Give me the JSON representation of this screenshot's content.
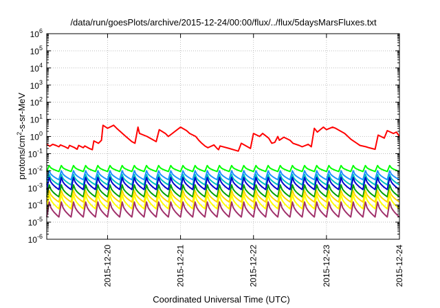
{
  "chart_data": {
    "type": "line",
    "title": "/data/run/goesPlots/archive/2015-12-24/00:00/flux/../flux/5daysMarsFluxes.txt",
    "xlabel": "Coordinated Universal Time (UTC)",
    "ylabel": "protons/cm²-s-sr-MeV",
    "ylabel_parts": {
      "base": "protons/cm",
      "sup": "2",
      "rest": "-s-sr-MeV"
    },
    "y_scale": "log",
    "ylim": [
      1e-06,
      1000000.0
    ],
    "y_ticks": [
      {
        "value": -6,
        "base": "10",
        "exp": "-6"
      },
      {
        "value": -5,
        "base": "10",
        "exp": "-5"
      },
      {
        "value": -4,
        "base": "10",
        "exp": "-4"
      },
      {
        "value": -3,
        "base": "10",
        "exp": "-3"
      },
      {
        "value": -2,
        "base": "10",
        "exp": "-2"
      },
      {
        "value": -1,
        "base": "10",
        "exp": "-1"
      },
      {
        "value": 0,
        "base": "10",
        "exp": "0"
      },
      {
        "value": 1,
        "base": "10",
        "exp": "1"
      },
      {
        "value": 2,
        "base": "10",
        "exp": "2"
      },
      {
        "value": 3,
        "base": "10",
        "exp": "3"
      },
      {
        "value": 4,
        "base": "10",
        "exp": "4"
      },
      {
        "value": 5,
        "base": "10",
        "exp": "5"
      },
      {
        "value": 6,
        "base": "10",
        "exp": "6"
      }
    ],
    "xlim": [
      "2015-12-19T04:00",
      "2015-12-24T00:00"
    ],
    "x_ticks": [
      "2015-12-20",
      "2015-12-21",
      "2015-12-22",
      "2015-12-23",
      "2015-12-24"
    ],
    "grid": true,
    "series": [
      {
        "color": "#ff0000",
        "x": [
          "2015-12-19T04:00",
          "2015-12-19T05:00",
          "2015-12-19T06:00",
          "2015-12-19T07:00",
          "2015-12-19T08:00",
          "2015-12-19T08:30",
          "2015-12-19T10:00",
          "2015-12-19T11:00",
          "2015-12-19T11:30",
          "2015-12-19T13:00",
          "2015-12-19T14:00",
          "2015-12-19T14:30",
          "2015-12-19T16:00",
          "2015-12-19T16:30",
          "2015-12-19T18:00",
          "2015-12-19T19:00",
          "2015-12-19T19:30",
          "2015-12-19T21:00",
          "2015-12-19T22:00",
          "2015-12-19T22:30",
          "2015-12-20T00:00",
          "2015-12-20T02:00",
          "2015-12-20T03:00",
          "2015-12-20T06:00",
          "2015-12-20T08:00",
          "2015-12-20T09:00",
          "2015-12-20T10:00",
          "2015-12-20T10:30",
          "2015-12-20T13:00",
          "2015-12-20T16:00",
          "2015-12-20T17:00",
          "2015-12-20T19:00",
          "2015-12-20T20:00",
          "2015-12-21T00:00",
          "2015-12-21T02:00",
          "2015-12-21T03:00",
          "2015-12-21T05:00",
          "2015-12-21T06:00",
          "2015-12-21T07:00",
          "2015-12-21T08:00",
          "2015-12-21T09:00",
          "2015-12-21T11:00",
          "2015-12-21T12:00",
          "2015-12-21T12:30",
          "2015-12-21T13:00",
          "2015-12-21T16:00",
          "2015-12-21T19:00",
          "2015-12-21T20:00",
          "2015-12-21T23:00",
          "2015-12-22T00:00",
          "2015-12-22T02:00",
          "2015-12-22T03:00",
          "2015-12-22T05:00",
          "2015-12-22T06:00",
          "2015-12-22T07:00",
          "2015-12-22T08:00",
          "2015-12-22T08:30",
          "2015-12-22T10:00",
          "2015-12-22T12:00",
          "2015-12-22T13:00",
          "2015-12-22T15:00",
          "2015-12-22T16:00",
          "2015-12-22T18:00",
          "2015-12-22T19:00",
          "2015-12-22T20:00",
          "2015-12-22T21:00",
          "2015-12-22T23:00",
          "2015-12-23T00:00",
          "2015-12-23T02:00",
          "2015-12-23T03:00",
          "2015-12-23T06:00",
          "2015-12-23T08:00",
          "2015-12-23T10:00",
          "2015-12-23T11:00",
          "2015-12-23T13:00",
          "2015-12-23T14:00",
          "2015-12-23T16:00",
          "2015-12-23T17:00",
          "2015-12-23T19:00",
          "2015-12-23T20:00",
          "2015-12-23T22:00",
          "2015-12-23T23:00",
          "2015-12-24T00:00"
        ],
        "y": [
          0.35,
          0.27,
          0.35,
          0.3,
          0.25,
          0.32,
          0.25,
          0.2,
          0.3,
          0.23,
          0.18,
          0.3,
          0.22,
          0.28,
          0.2,
          0.17,
          0.55,
          0.4,
          0.6,
          4.5,
          3.0,
          4.5,
          3.0,
          1.0,
          0.5,
          0.4,
          3.5,
          1.5,
          1.0,
          0.5,
          2.5,
          1.5,
          1.0,
          3.5,
          2.2,
          1.5,
          1.0,
          0.6,
          0.4,
          0.28,
          0.22,
          0.32,
          0.2,
          0.17,
          0.28,
          0.2,
          0.14,
          0.4,
          0.2,
          1.5,
          1.0,
          1.5,
          0.8,
          0.4,
          0.45,
          1.0,
          0.6,
          0.9,
          0.6,
          0.4,
          0.3,
          0.25,
          0.35,
          0.25,
          3.0,
          1.8,
          3.5,
          2.5,
          3.5,
          3.0,
          1.5,
          0.7,
          0.4,
          0.3,
          0.25,
          0.22,
          0.18,
          1.2,
          0.8,
          2.2,
          1.5,
          1.8,
          1.0
        ]
      },
      {
        "color": "#00ff00",
        "sawtooth": {
          "period_hours": 4,
          "start": "2015-12-19T04:00",
          "peak": 0.02,
          "trough": 0.009
        }
      },
      {
        "color": "#1e90ff",
        "sawtooth": {
          "period_hours": 4,
          "start": "2015-12-19T04:00",
          "peak": 0.01,
          "trough": 0.003
        }
      },
      {
        "color": "#00c0c0",
        "sawtooth": {
          "period_hours": 4,
          "start": "2015-12-19T04:00",
          "peak": 0.006,
          "trough": 0.0015
        }
      },
      {
        "color": "#0000cd",
        "sawtooth": {
          "period_hours": 4,
          "start": "2015-12-19T04:00",
          "peak": 0.004,
          "trough": 0.0008
        }
      },
      {
        "color": "#00a000",
        "sawtooth": {
          "period_hours": 4,
          "start": "2015-12-19T04:00",
          "peak": 0.0015,
          "trough": 0.0003
        }
      },
      {
        "color": "#ffd700",
        "sawtooth": {
          "period_hours": 4,
          "start": "2015-12-19T04:00",
          "peak": 0.0007,
          "trough": 0.00015
        }
      },
      {
        "color": "#ffff00",
        "sawtooth": {
          "period_hours": 4,
          "start": "2015-12-19T04:00",
          "peak": 0.0004,
          "trough": 6e-05
        }
      },
      {
        "color": "#a0306a",
        "sawtooth": {
          "period_hours": 4,
          "start": "2015-12-19T04:00",
          "peak": 0.00015,
          "trough": 2e-05
        }
      }
    ]
  }
}
